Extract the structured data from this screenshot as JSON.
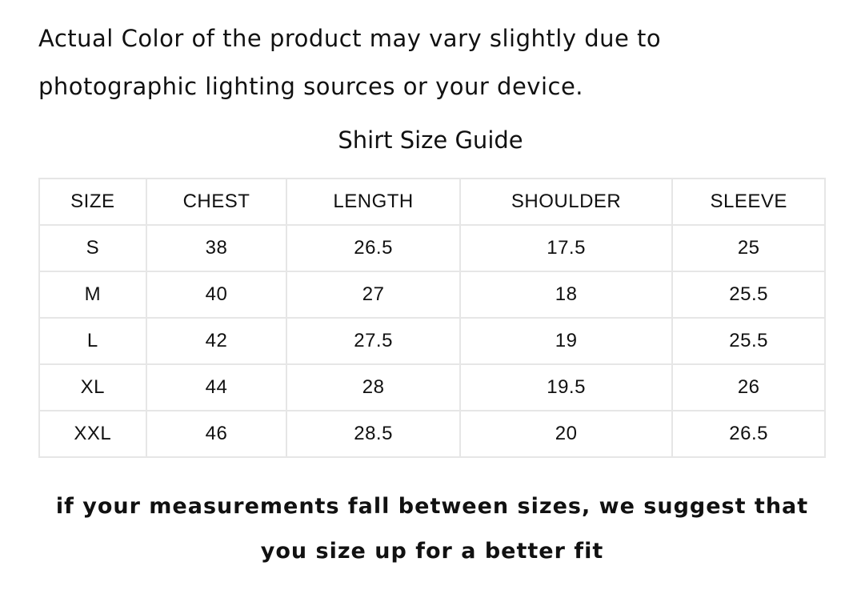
{
  "notice": {
    "line1": "Actual Color of the product may vary slightly due to",
    "line2": "photographic lighting sources or your device."
  },
  "title": "Shirt Size Guide",
  "table": {
    "headers": [
      "SIZE",
      "CHEST",
      "LENGTH",
      "SHOULDER",
      "SLEEVE"
    ],
    "rows": [
      [
        "S",
        "38",
        "26.5",
        "17.5",
        "25"
      ],
      [
        "M",
        "40",
        "27",
        "18",
        "25.5"
      ],
      [
        "L",
        "42",
        "27.5",
        "19",
        "25.5"
      ],
      [
        "XL",
        "44",
        "28",
        "19.5",
        "26"
      ],
      [
        "XXL",
        "46",
        "28.5",
        "20",
        "26.5"
      ]
    ]
  },
  "footer": {
    "line1": "if your measurements fall between sizes, we suggest that",
    "line2": "you size up for a better fit"
  }
}
